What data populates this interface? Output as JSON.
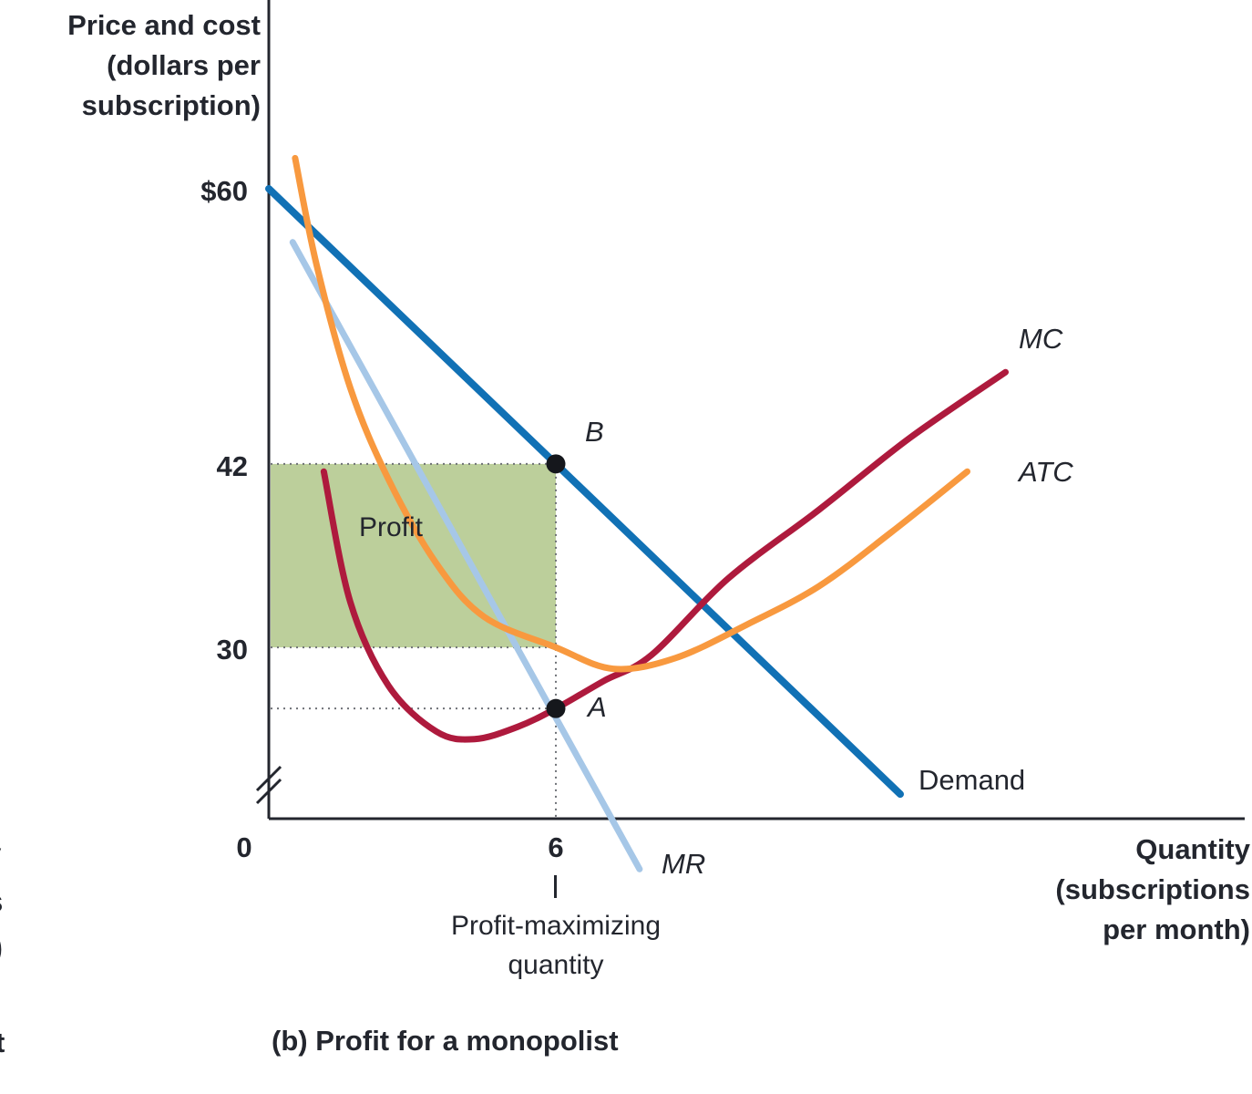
{
  "figure": {
    "caption": "(b) Profit for a monopolist",
    "y_axis_title": "Price and cost\n(dollars per\nsubscription)",
    "x_axis_title": "Quantity\n(subscriptions\nper month)",
    "profit_max_annotation": "Profit-maximizing\nquantity"
  },
  "edge_fragments": [
    "y",
    "s",
    ")",
    "t"
  ],
  "chart_data": {
    "type": "line",
    "title": "(b) Profit for a monopolist",
    "xlabel": "Quantity (subscriptions per month)",
    "ylabel": "Price and cost (dollars per subscription)",
    "xlim": [
      0,
      20.5
    ],
    "ylim": [
      14,
      66
    ],
    "axis_break_on_y": true,
    "grid": false,
    "x_ticks": [
      {
        "value": 0,
        "label": "0"
      },
      {
        "value": 6,
        "label": "6"
      }
    ],
    "y_ticks": [
      {
        "value": 60,
        "label": "$60"
      },
      {
        "value": 42,
        "label": "42"
      },
      {
        "value": 30,
        "label": "30"
      }
    ],
    "series": [
      {
        "name": "Demand",
        "color": "#1171b5",
        "width": 8,
        "smooth": false,
        "points": [
          [
            0,
            60
          ],
          [
            13.2,
            20.4
          ]
        ]
      },
      {
        "name": "MR",
        "color": "#a6c7e7",
        "width": 7,
        "smooth": false,
        "points": [
          [
            0.5,
            56.5
          ],
          [
            7.75,
            15.5
          ]
        ]
      },
      {
        "name": "MC",
        "color": "#ae1a3d",
        "width": 7,
        "smooth": true,
        "points": [
          [
            1.15,
            41.5
          ],
          [
            1.7,
            33
          ],
          [
            2.5,
            27.5
          ],
          [
            3.5,
            24.5
          ],
          [
            4.3,
            24
          ],
          [
            5.2,
            24.8
          ],
          [
            6,
            26
          ],
          [
            7,
            27.8
          ],
          [
            8,
            29.5
          ],
          [
            9.6,
            34.5
          ],
          [
            11.5,
            39
          ],
          [
            13.4,
            43.7
          ],
          [
            15.4,
            48
          ]
        ]
      },
      {
        "name": "ATC",
        "color": "#f8993f",
        "width": 7,
        "smooth": true,
        "points": [
          [
            0.55,
            62
          ],
          [
            1.0,
            55
          ],
          [
            1.7,
            47
          ],
          [
            2.5,
            41
          ],
          [
            3.5,
            35.5
          ],
          [
            4.5,
            32
          ],
          [
            6,
            30
          ],
          [
            7.2,
            28.6
          ],
          [
            8.5,
            29.3
          ],
          [
            10,
            31.5
          ],
          [
            11.5,
            34
          ],
          [
            13,
            37.5
          ],
          [
            14.6,
            41.5
          ]
        ]
      }
    ],
    "markers": [
      {
        "label": "B",
        "q": 6,
        "p": 42
      },
      {
        "label": "A",
        "q": 6,
        "p": 26
      }
    ],
    "profit_region": {
      "q0": 0,
      "q1": 6,
      "p0": 30,
      "p1": 42,
      "fill": "#bccf9b",
      "label": "Profit"
    },
    "guides": [
      {
        "type": "h",
        "p": 42,
        "q0": 0,
        "q1": 6
      },
      {
        "type": "h",
        "p": 30,
        "q0": 0,
        "q1": 6
      },
      {
        "type": "h",
        "p": 26,
        "q0": 0,
        "q1": 6
      },
      {
        "type": "v",
        "q": 6,
        "p0": 42,
        "p1": 0
      }
    ],
    "profit_maximizing_quantity": 6,
    "monopoly_price": 42,
    "atc_at_profit_max": 30
  }
}
